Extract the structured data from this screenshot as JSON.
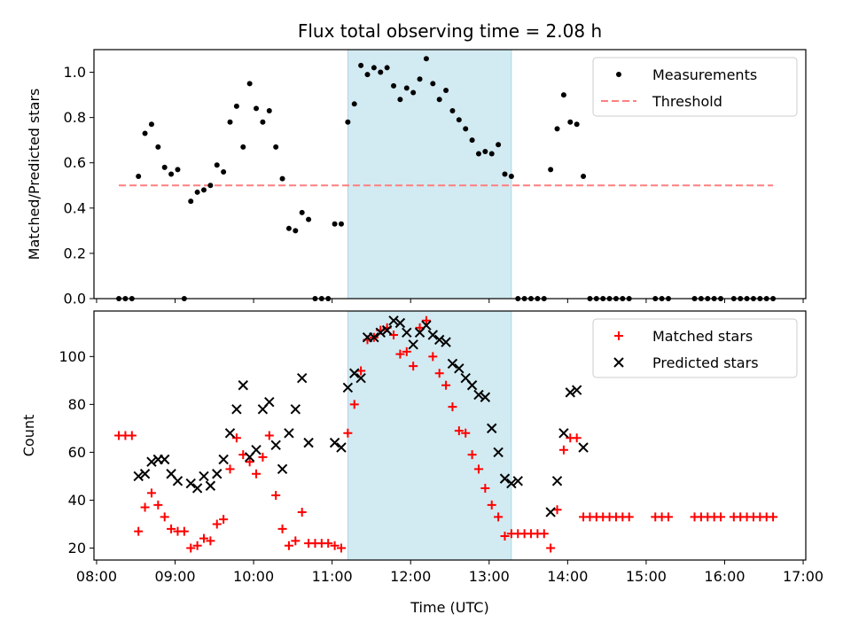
{
  "title": "Flux total observing time = 2.08 h",
  "xlabel": "Time (UTC)",
  "time_ticks": [
    {
      "t": 8,
      "label": "08:00"
    },
    {
      "t": 9,
      "label": "09:00"
    },
    {
      "t": 10,
      "label": "10:00"
    },
    {
      "t": 11,
      "label": "11:00"
    },
    {
      "t": 12,
      "label": "12:00"
    },
    {
      "t": 13,
      "label": "13:00"
    },
    {
      "t": 14,
      "label": "14:00"
    },
    {
      "t": 15,
      "label": "15:00"
    },
    {
      "t": 16,
      "label": "16:00"
    },
    {
      "t": 17,
      "label": "17:00"
    }
  ],
  "colors": {
    "measurement": "#000000",
    "threshold": "#ff7f7f",
    "matched": "#ff0000",
    "predicted": "#000000",
    "highlight": "#add8e6"
  },
  "chart_data": [
    {
      "type": "scatter",
      "ylabel": "Matched/Predicted stars",
      "xlim": [
        "08:00",
        "17:00"
      ],
      "ylim": [
        0,
        1.1
      ],
      "yticks": [
        "0.0",
        "0.2",
        "0.4",
        "0.6",
        "0.8",
        "1.0"
      ],
      "highlight_span": [
        "11:12",
        "13:17"
      ],
      "legend": {
        "position": "top-right",
        "entries": [
          "Measurements",
          "Threshold"
        ]
      },
      "threshold": {
        "name": "Threshold",
        "y": 0.5,
        "x_range": [
          "08:17",
          "16:37"
        ]
      },
      "series": [
        {
          "name": "Measurements",
          "marker": "dot",
          "points": [
            [
              "08:17",
              0
            ],
            [
              "08:22",
              0
            ],
            [
              "08:27",
              0
            ],
            [
              "08:32",
              0.54
            ],
            [
              "08:37",
              0.73
            ],
            [
              "08:42",
              0.77
            ],
            [
              "08:47",
              0.67
            ],
            [
              "08:52",
              0.58
            ],
            [
              "08:57",
              0.55
            ],
            [
              "09:02",
              0.57
            ],
            [
              "09:07",
              0
            ],
            [
              "09:12",
              0.43
            ],
            [
              "09:17",
              0.47
            ],
            [
              "09:22",
              0.48
            ],
            [
              "09:27",
              0.5
            ],
            [
              "09:32",
              0.59
            ],
            [
              "09:37",
              0.56
            ],
            [
              "09:42",
              0.78
            ],
            [
              "09:47",
              0.85
            ],
            [
              "09:52",
              0.67
            ],
            [
              "09:57",
              0.95
            ],
            [
              "10:02",
              0.84
            ],
            [
              "10:07",
              0.78
            ],
            [
              "10:12",
              0.83
            ],
            [
              "10:17",
              0.67
            ],
            [
              "10:22",
              0.53
            ],
            [
              "10:27",
              0.31
            ],
            [
              "10:32",
              0.3
            ],
            [
              "10:37",
              0.38
            ],
            [
              "10:42",
              0.35
            ],
            [
              "10:47",
              0
            ],
            [
              "10:52",
              0
            ],
            [
              "10:57",
              0
            ],
            [
              "11:02",
              0.33
            ],
            [
              "11:07",
              0.33
            ],
            [
              "11:12",
              0.78
            ],
            [
              "11:17",
              0.86
            ],
            [
              "11:22",
              1.03
            ],
            [
              "11:27",
              0.99
            ],
            [
              "11:32",
              1.02
            ],
            [
              "11:37",
              1.0
            ],
            [
              "11:42",
              1.02
            ],
            [
              "11:47",
              0.94
            ],
            [
              "11:52",
              0.88
            ],
            [
              "11:57",
              0.93
            ],
            [
              "12:02",
              0.91
            ],
            [
              "12:07",
              0.97
            ],
            [
              "12:12",
              1.06
            ],
            [
              "12:17",
              0.95
            ],
            [
              "12:22",
              0.88
            ],
            [
              "12:27",
              0.92
            ],
            [
              "12:32",
              0.83
            ],
            [
              "12:37",
              0.79
            ],
            [
              "12:42",
              0.75
            ],
            [
              "12:47",
              0.7
            ],
            [
              "12:52",
              0.64
            ],
            [
              "12:57",
              0.65
            ],
            [
              "13:02",
              0.64
            ],
            [
              "13:07",
              0.68
            ],
            [
              "13:12",
              0.55
            ],
            [
              "13:17",
              0.54
            ],
            [
              "13:22",
              0
            ],
            [
              "13:27",
              0
            ],
            [
              "13:32",
              0
            ],
            [
              "13:37",
              0
            ],
            [
              "13:42",
              0
            ],
            [
              "13:47",
              0.57
            ],
            [
              "13:52",
              0.75
            ],
            [
              "13:57",
              0.9
            ],
            [
              "14:02",
              0.78
            ],
            [
              "14:07",
              0.77
            ],
            [
              "14:12",
              0.54
            ],
            [
              "14:17",
              0
            ],
            [
              "14:22",
              0
            ],
            [
              "14:27",
              0
            ],
            [
              "14:32",
              0
            ],
            [
              "14:37",
              0
            ],
            [
              "14:42",
              0
            ],
            [
              "14:47",
              0
            ],
            [
              "15:07",
              0
            ],
            [
              "15:12",
              0
            ],
            [
              "15:17",
              0
            ],
            [
              "15:37",
              0
            ],
            [
              "15:42",
              0
            ],
            [
              "15:47",
              0
            ],
            [
              "15:52",
              0
            ],
            [
              "15:57",
              0
            ],
            [
              "16:07",
              0
            ],
            [
              "16:12",
              0
            ],
            [
              "16:17",
              0
            ],
            [
              "16:22",
              0
            ],
            [
              "16:27",
              0
            ],
            [
              "16:32",
              0
            ],
            [
              "16:37",
              0
            ]
          ]
        }
      ]
    },
    {
      "type": "scatter",
      "ylabel": "Count",
      "xlim": [
        "08:00",
        "17:00"
      ],
      "ylim": [
        15,
        119
      ],
      "yticks": [
        "20",
        "40",
        "60",
        "80",
        "100"
      ],
      "highlight_span": [
        "11:12",
        "13:17"
      ],
      "legend": {
        "position": "top-right",
        "entries": [
          "Matched stars",
          "Predicted stars"
        ]
      },
      "series": [
        {
          "name": "Matched stars",
          "marker": "plus",
          "points": [
            [
              "08:17",
              67
            ],
            [
              "08:22",
              67
            ],
            [
              "08:27",
              67
            ],
            [
              "08:32",
              27
            ],
            [
              "08:37",
              37
            ],
            [
              "08:42",
              43
            ],
            [
              "08:47",
              38
            ],
            [
              "08:52",
              33
            ],
            [
              "08:57",
              28
            ],
            [
              "09:02",
              27
            ],
            [
              "09:07",
              27
            ],
            [
              "09:12",
              20
            ],
            [
              "09:17",
              21
            ],
            [
              "09:22",
              24
            ],
            [
              "09:27",
              23
            ],
            [
              "09:32",
              30
            ],
            [
              "09:37",
              32
            ],
            [
              "09:42",
              53
            ],
            [
              "09:47",
              66
            ],
            [
              "09:52",
              59
            ],
            [
              "09:57",
              56
            ],
            [
              "10:02",
              51
            ],
            [
              "10:07",
              58
            ],
            [
              "10:12",
              67
            ],
            [
              "10:17",
              42
            ],
            [
              "10:22",
              28
            ],
            [
              "10:27",
              21
            ],
            [
              "10:32",
              23
            ],
            [
              "10:37",
              35
            ],
            [
              "10:42",
              22
            ],
            [
              "10:47",
              22
            ],
            [
              "10:52",
              22
            ],
            [
              "10:57",
              22
            ],
            [
              "11:02",
              21
            ],
            [
              "11:07",
              20
            ],
            [
              "11:12",
              68
            ],
            [
              "11:17",
              80
            ],
            [
              "11:22",
              94
            ],
            [
              "11:27",
              107
            ],
            [
              "11:32",
              108
            ],
            [
              "11:37",
              111
            ],
            [
              "11:42",
              112
            ],
            [
              "11:47",
              109
            ],
            [
              "11:52",
              101
            ],
            [
              "11:57",
              102
            ],
            [
              "12:02",
              96
            ],
            [
              "12:07",
              112
            ],
            [
              "12:12",
              115
            ],
            [
              "12:17",
              100
            ],
            [
              "12:22",
              93
            ],
            [
              "12:27",
              88
            ],
            [
              "12:32",
              79
            ],
            [
              "12:37",
              69
            ],
            [
              "12:42",
              68
            ],
            [
              "12:47",
              59
            ],
            [
              "12:52",
              53
            ],
            [
              "12:57",
              45
            ],
            [
              "13:02",
              38
            ],
            [
              "13:07",
              33
            ],
            [
              "13:12",
              25
            ],
            [
              "13:17",
              26
            ],
            [
              "13:22",
              26
            ],
            [
              "13:27",
              26
            ],
            [
              "13:32",
              26
            ],
            [
              "13:37",
              26
            ],
            [
              "13:42",
              26
            ],
            [
              "13:47",
              20
            ],
            [
              "13:52",
              36
            ],
            [
              "13:57",
              61
            ],
            [
              "14:02",
              66
            ],
            [
              "14:07",
              66
            ],
            [
              "14:12",
              33
            ],
            [
              "14:17",
              33
            ],
            [
              "14:22",
              33
            ],
            [
              "14:27",
              33
            ],
            [
              "14:32",
              33
            ],
            [
              "14:37",
              33
            ],
            [
              "14:42",
              33
            ],
            [
              "14:47",
              33
            ],
            [
              "15:07",
              33
            ],
            [
              "15:12",
              33
            ],
            [
              "15:17",
              33
            ],
            [
              "15:37",
              33
            ],
            [
              "15:42",
              33
            ],
            [
              "15:47",
              33
            ],
            [
              "15:52",
              33
            ],
            [
              "15:57",
              33
            ],
            [
              "16:07",
              33
            ],
            [
              "16:12",
              33
            ],
            [
              "16:17",
              33
            ],
            [
              "16:22",
              33
            ],
            [
              "16:27",
              33
            ],
            [
              "16:32",
              33
            ],
            [
              "16:37",
              33
            ]
          ]
        },
        {
          "name": "Predicted stars",
          "marker": "x",
          "points": [
            [
              "08:32",
              50
            ],
            [
              "08:37",
              51
            ],
            [
              "08:42",
              56
            ],
            [
              "08:47",
              57
            ],
            [
              "08:52",
              57
            ],
            [
              "08:57",
              51
            ],
            [
              "09:02",
              48
            ],
            [
              "09:12",
              47
            ],
            [
              "09:17",
              45
            ],
            [
              "09:22",
              50
            ],
            [
              "09:27",
              46
            ],
            [
              "09:32",
              51
            ],
            [
              "09:37",
              57
            ],
            [
              "09:42",
              68
            ],
            [
              "09:47",
              78
            ],
            [
              "09:52",
              88
            ],
            [
              "09:57",
              58
            ],
            [
              "10:02",
              61
            ],
            [
              "10:07",
              78
            ],
            [
              "10:12",
              81
            ],
            [
              "10:17",
              63
            ],
            [
              "10:22",
              53
            ],
            [
              "10:27",
              68
            ],
            [
              "10:32",
              78
            ],
            [
              "10:37",
              91
            ],
            [
              "10:42",
              64
            ],
            [
              "11:02",
              64
            ],
            [
              "11:07",
              62
            ],
            [
              "11:12",
              87
            ],
            [
              "11:17",
              93
            ],
            [
              "11:22",
              91
            ],
            [
              "11:27",
              108
            ],
            [
              "11:32",
              108
            ],
            [
              "11:37",
              110
            ],
            [
              "11:42",
              111
            ],
            [
              "11:47",
              115
            ],
            [
              "11:52",
              114
            ],
            [
              "11:57",
              110
            ],
            [
              "12:02",
              105
            ],
            [
              "12:07",
              110
            ],
            [
              "12:12",
              113
            ],
            [
              "12:17",
              109
            ],
            [
              "12:22",
              107
            ],
            [
              "12:27",
              106
            ],
            [
              "12:32",
              97
            ],
            [
              "12:37",
              95
            ],
            [
              "12:42",
              91
            ],
            [
              "12:47",
              88
            ],
            [
              "12:52",
              84
            ],
            [
              "12:57",
              83
            ],
            [
              "13:02",
              70
            ],
            [
              "13:07",
              60
            ],
            [
              "13:12",
              49
            ],
            [
              "13:17",
              47
            ],
            [
              "13:22",
              48
            ],
            [
              "13:47",
              35
            ],
            [
              "13:52",
              48
            ],
            [
              "13:57",
              68
            ],
            [
              "14:02",
              85
            ],
            [
              "14:07",
              86
            ],
            [
              "14:12",
              62
            ]
          ]
        }
      ]
    }
  ]
}
